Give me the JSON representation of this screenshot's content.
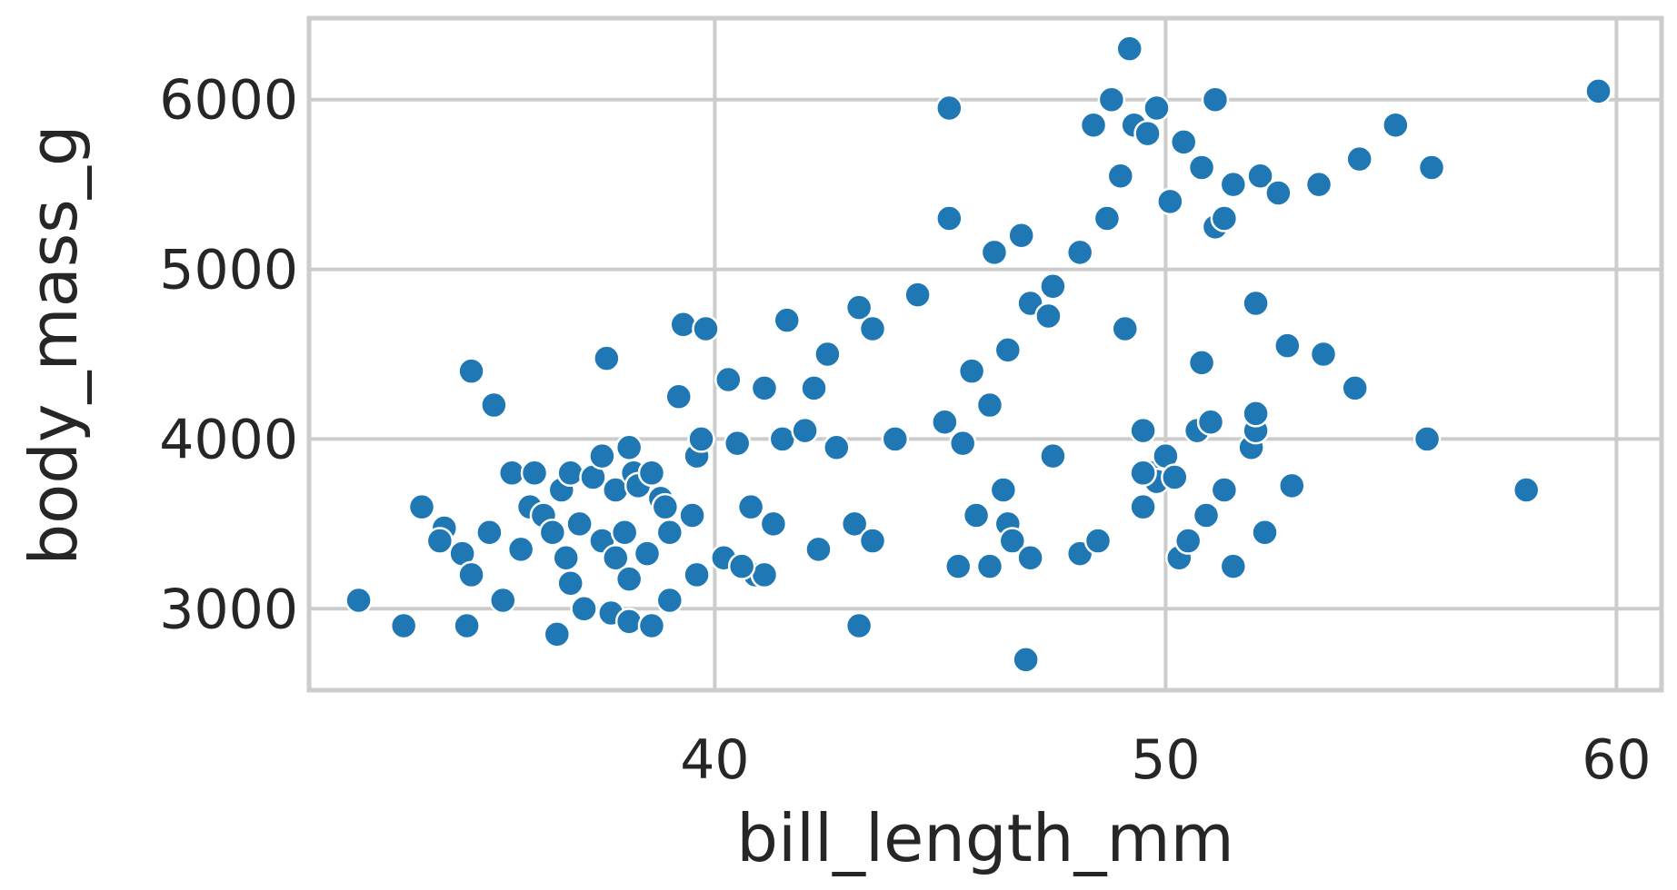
{
  "chart_data": {
    "type": "scatter",
    "title": "",
    "xlabel": "bill_length_mm",
    "ylabel": "body_mass_g",
    "xlim": [
      31,
      61
    ],
    "ylim": [
      2520,
      6480
    ],
    "xticks": [
      40,
      50,
      60
    ],
    "yticks": [
      3000,
      4000,
      5000,
      6000
    ],
    "grid": true,
    "legend": "none",
    "point_color": "#1f77b4",
    "points": [
      [
        32.1,
        3050
      ],
      [
        33.1,
        2900
      ],
      [
        33.5,
        3600
      ],
      [
        34.0,
        3475
      ],
      [
        33.9,
        3400
      ],
      [
        34.4,
        3325
      ],
      [
        34.5,
        2900
      ],
      [
        34.6,
        3200
      ],
      [
        34.6,
        4400
      ],
      [
        35.0,
        3450
      ],
      [
        35.1,
        4200
      ],
      [
        35.3,
        3050
      ],
      [
        35.5,
        3800
      ],
      [
        35.7,
        3350
      ],
      [
        35.9,
        3600
      ],
      [
        36.0,
        3800
      ],
      [
        36.2,
        3550
      ],
      [
        36.4,
        3450
      ],
      [
        36.6,
        3700
      ],
      [
        36.7,
        3300
      ],
      [
        36.8,
        3150
      ],
      [
        36.8,
        3800
      ],
      [
        37.0,
        3500
      ],
      [
        37.3,
        3775
      ],
      [
        37.5,
        3400
      ],
      [
        37.5,
        3900
      ],
      [
        37.6,
        4475
      ],
      [
        37.8,
        3700
      ],
      [
        37.8,
        3300
      ],
      [
        38.0,
        3450
      ],
      [
        38.1,
        3950
      ],
      [
        38.1,
        3175
      ],
      [
        38.2,
        3800
      ],
      [
        38.3,
        3725
      ],
      [
        38.5,
        3325
      ],
      [
        38.6,
        3800
      ],
      [
        38.8,
        3650
      ],
      [
        38.9,
        3600
      ],
      [
        39.0,
        3450
      ],
      [
        39.2,
        4250
      ],
      [
        39.3,
        4675
      ],
      [
        39.5,
        3550
      ],
      [
        39.6,
        3900
      ],
      [
        39.7,
        4000
      ],
      [
        39.8,
        4650
      ],
      [
        40.2,
        3300
      ],
      [
        40.3,
        4350
      ],
      [
        40.5,
        3975
      ],
      [
        40.8,
        3600
      ],
      [
        41.1,
        4300
      ],
      [
        41.3,
        3500
      ],
      [
        41.5,
        4000
      ],
      [
        41.6,
        4700
      ],
      [
        42.0,
        4050
      ],
      [
        42.2,
        4300
      ],
      [
        42.5,
        4500
      ],
      [
        42.7,
        3950
      ],
      [
        43.1,
        3500
      ],
      [
        43.2,
        4775
      ],
      [
        43.5,
        4650
      ],
      [
        44.0,
        4000
      ],
      [
        44.5,
        4850
      ],
      [
        45.1,
        4100
      ],
      [
        45.2,
        5300
      ],
      [
        45.5,
        3975
      ],
      [
        45.7,
        4400
      ],
      [
        45.8,
        3550
      ],
      [
        46.1,
        4200
      ],
      [
        46.2,
        5100
      ],
      [
        46.5,
        4525
      ],
      [
        46.8,
        5200
      ],
      [
        47.0,
        4800
      ],
      [
        47.4,
        4725
      ],
      [
        47.5,
        4900
      ],
      [
        48.1,
        5100
      ],
      [
        48.4,
        5850
      ],
      [
        48.7,
        5300
      ],
      [
        49.0,
        5550
      ],
      [
        49.1,
        4650
      ],
      [
        49.3,
        5850
      ],
      [
        49.6,
        5800
      ],
      [
        49.8,
        5950
      ],
      [
        50.1,
        5400
      ],
      [
        50.4,
        5750
      ],
      [
        50.8,
        5600
      ],
      [
        51.1,
        5250
      ],
      [
        51.3,
        5300
      ],
      [
        51.5,
        5500
      ],
      [
        52.1,
        5550
      ],
      [
        52.5,
        5450
      ],
      [
        53.4,
        5500
      ],
      [
        54.3,
        5650
      ],
      [
        55.1,
        5850
      ],
      [
        55.9,
        5600
      ],
      [
        59.6,
        6050
      ],
      [
        49.2,
        6300
      ],
      [
        48.8,
        6000
      ],
      [
        51.1,
        6000
      ],
      [
        45.2,
        5950
      ],
      [
        46.5,
        3500
      ],
      [
        46.9,
        2700
      ],
      [
        46.4,
        3700
      ],
      [
        46.6,
        3400
      ],
      [
        47.0,
        3300
      ],
      [
        47.5,
        3900
      ],
      [
        48.1,
        3325
      ],
      [
        49.5,
        3600
      ],
      [
        49.7,
        3800
      ],
      [
        50.0,
        3900
      ],
      [
        50.3,
        3300
      ],
      [
        50.5,
        3400
      ],
      [
        50.9,
        3550
      ],
      [
        51.3,
        3700
      ],
      [
        51.5,
        3250
      ],
      [
        51.9,
        3950
      ],
      [
        52.0,
        4050
      ],
      [
        52.2,
        3450
      ],
      [
        52.8,
        3725
      ],
      [
        49.8,
        3750
      ],
      [
        50.7,
        4050
      ],
      [
        51.0,
        4100
      ],
      [
        52.0,
        4150
      ],
      [
        49.5,
        3800
      ],
      [
        50.2,
        3775
      ],
      [
        53.5,
        4500
      ],
      [
        54.2,
        4300
      ],
      [
        55.8,
        4000
      ],
      [
        58.0,
        3700
      ],
      [
        50.8,
        4450
      ],
      [
        52.0,
        4800
      ],
      [
        52.7,
        4550
      ],
      [
        49.5,
        4050
      ],
      [
        48.5,
        3400
      ],
      [
        45.4,
        3250
      ],
      [
        46.1,
        3250
      ],
      [
        37.1,
        3000
      ],
      [
        37.7,
        2975
      ],
      [
        38.1,
        2925
      ],
      [
        38.6,
        2900
      ],
      [
        36.5,
        2850
      ],
      [
        43.2,
        2900
      ],
      [
        39.0,
        3050
      ],
      [
        40.9,
        3200
      ],
      [
        41.1,
        3200
      ],
      [
        42.3,
        3350
      ],
      [
        43.5,
        3400
      ],
      [
        39.6,
        3200
      ],
      [
        40.6,
        3250
      ]
    ]
  }
}
